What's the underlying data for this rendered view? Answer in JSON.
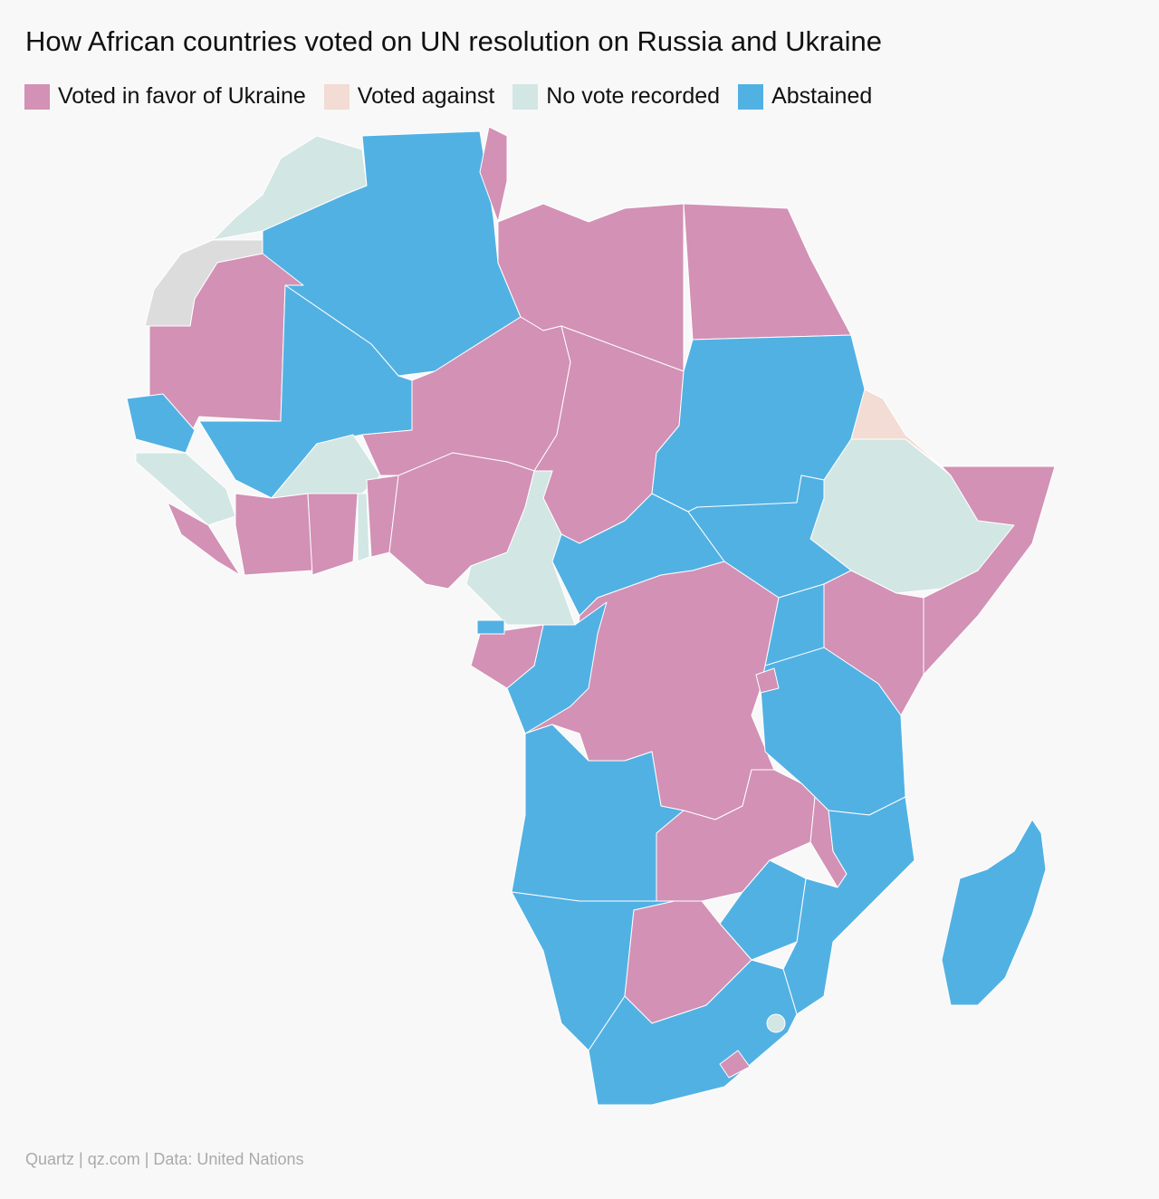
{
  "title": "How African countries voted on UN resolution on Russia and Ukraine",
  "legend": [
    {
      "label": "Voted in favor of Ukraine",
      "color": "#d291b5"
    },
    {
      "label": "Voted against",
      "color": "#f2dcd3"
    },
    {
      "label": "No vote recorded",
      "color": "#d2e6e3"
    },
    {
      "label": "Abstained",
      "color": "#52b1e3"
    }
  ],
  "source": "Quartz | qz.com | Data: United Nations"
}
